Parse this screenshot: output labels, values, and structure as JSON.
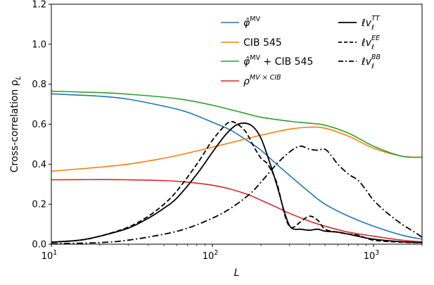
{
  "chart_data": {
    "type": "line",
    "xscale": "log",
    "xlim": [
      10,
      2000
    ],
    "ylim": [
      0.0,
      1.2
    ],
    "xlabel": "L",
    "ylabel": "Cross-correlation ρ_L",
    "grid": false,
    "legend_placement": "top-right",
    "x_ticks": [
      {
        "value": 10,
        "base": "10",
        "exp": "1"
      },
      {
        "value": 100,
        "base": "10",
        "exp": "2"
      },
      {
        "value": 1000,
        "base": "10",
        "exp": "3"
      }
    ],
    "y_ticks": [
      "0.0",
      "0.2",
      "0.4",
      "0.6",
      "0.8",
      "1.0",
      "1.2"
    ],
    "series": [
      {
        "name": "φ̂^MV",
        "legend_main": "φ̂",
        "legend_sup": "MV",
        "legend_rest": "",
        "color": "#1f77b4",
        "dash": "solid",
        "x": [
          10,
          20,
          30,
          50,
          70,
          100,
          130,
          170,
          200,
          250,
          300,
          400,
          500,
          700,
          1000,
          1500,
          2000
        ],
        "y": [
          0.752,
          0.74,
          0.725,
          0.69,
          0.66,
          0.61,
          0.57,
          0.51,
          0.47,
          0.4,
          0.345,
          0.26,
          0.2,
          0.14,
          0.09,
          0.045,
          0.025
        ]
      },
      {
        "name": "CIB 545",
        "legend_main": "CIB  545",
        "legend_sup": "",
        "legend_rest": "",
        "color": "#ff7f0e",
        "dash": "solid",
        "x": [
          10,
          20,
          30,
          50,
          70,
          100,
          150,
          200,
          300,
          400,
          500,
          700,
          1000,
          1500,
          2000
        ],
        "y": [
          0.365,
          0.385,
          0.4,
          0.43,
          0.455,
          0.485,
          0.52,
          0.545,
          0.575,
          0.585,
          0.58,
          0.54,
          0.48,
          0.44,
          0.435
        ]
      },
      {
        "name": "φ̂^MV + CIB 545",
        "legend_main": "φ̂",
        "legend_sup": "MV",
        "legend_rest": " + CIB  545",
        "color": "#2ca02c",
        "dash": "solid",
        "x": [
          10,
          20,
          30,
          50,
          70,
          100,
          150,
          200,
          300,
          400,
          500,
          700,
          1000,
          1500,
          2000
        ],
        "y": [
          0.765,
          0.758,
          0.75,
          0.735,
          0.72,
          0.695,
          0.66,
          0.635,
          0.615,
          0.605,
          0.595,
          0.555,
          0.49,
          0.44,
          0.435
        ]
      },
      {
        "name": "ρ^(MV×CIB)",
        "legend_main": "ρ",
        "legend_sup": "MV × CIB",
        "legend_rest": "",
        "color": "#d62728",
        "dash": "solid",
        "x": [
          10,
          20,
          30,
          50,
          70,
          100,
          130,
          170,
          200,
          250,
          300,
          400,
          500,
          700,
          1000,
          1500,
          2000
        ],
        "y": [
          0.322,
          0.323,
          0.322,
          0.318,
          0.31,
          0.295,
          0.275,
          0.245,
          0.22,
          0.185,
          0.155,
          0.115,
          0.09,
          0.06,
          0.04,
          0.02,
          0.012
        ]
      },
      {
        "name": "ℓv_ℓ^TT",
        "legend_main": "ℓv",
        "legend_sub": "ℓ",
        "legend_sup": "TT",
        "legend_rest": "",
        "color": "#000000",
        "dash": "solid",
        "x": [
          10,
          15,
          20,
          30,
          40,
          50,
          60,
          80,
          100,
          120,
          140,
          160,
          180,
          200,
          220,
          250,
          280,
          300,
          320,
          350,
          400,
          450,
          500,
          600,
          700,
          800,
          1000,
          1500,
          2000
        ],
        "y": [
          0.01,
          0.02,
          0.04,
          0.08,
          0.13,
          0.18,
          0.23,
          0.35,
          0.46,
          0.545,
          0.595,
          0.605,
          0.585,
          0.53,
          0.44,
          0.3,
          0.16,
          0.095,
          0.075,
          0.075,
          0.07,
          0.075,
          0.065,
          0.06,
          0.05,
          0.04,
          0.025,
          0.012,
          0.008
        ]
      },
      {
        "name": "ℓv_ℓ^EE",
        "legend_main": "ℓv",
        "legend_sub": "ℓ",
        "legend_sup": "EE",
        "legend_rest": "",
        "color": "#000000",
        "dash": "dashed",
        "x": [
          10,
          15,
          20,
          30,
          40,
          50,
          60,
          80,
          100,
          120,
          130,
          140,
          160,
          180,
          200,
          220,
          250,
          280,
          300,
          320,
          350,
          400,
          450,
          500,
          600,
          700,
          800,
          1000,
          1500,
          2000
        ],
        "y": [
          0.01,
          0.02,
          0.04,
          0.085,
          0.14,
          0.2,
          0.265,
          0.4,
          0.52,
          0.595,
          0.612,
          0.605,
          0.565,
          0.49,
          0.43,
          0.4,
          0.31,
          0.15,
          0.09,
          0.085,
          0.11,
          0.14,
          0.12,
          0.075,
          0.06,
          0.05,
          0.045,
          0.02,
          0.01,
          0.008
        ]
      },
      {
        "name": "ℓv_ℓ^BB",
        "legend_main": "ℓv",
        "legend_sub": "ℓ",
        "legend_sup": "BB",
        "legend_rest": "",
        "color": "#000000",
        "dash": "dashdot",
        "x": [
          10,
          20,
          30,
          50,
          70,
          100,
          130,
          170,
          200,
          250,
          300,
          350,
          400,
          450,
          500,
          550,
          600,
          700,
          800,
          900,
          1000,
          1200,
          1500,
          1800,
          2000
        ],
        "y": [
          0.002,
          0.008,
          0.02,
          0.05,
          0.08,
          0.13,
          0.18,
          0.25,
          0.31,
          0.4,
          0.46,
          0.49,
          0.475,
          0.47,
          0.475,
          0.44,
          0.4,
          0.35,
          0.32,
          0.27,
          0.22,
          0.16,
          0.1,
          0.06,
          0.035
        ]
      }
    ]
  }
}
